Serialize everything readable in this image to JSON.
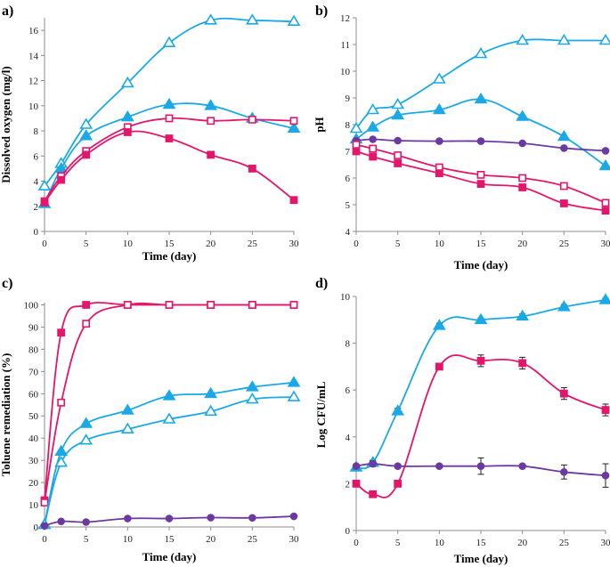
{
  "figure": {
    "colors": {
      "cyan": "#1aa9e6",
      "pink": "#e4166b",
      "purple": "#6a3aa1",
      "axis": "#8c8c8c",
      "grid": "#d9d9d9"
    }
  },
  "chart_data": [
    {
      "id": "a",
      "panel_label": "a)",
      "type": "line",
      "xlabel": "Time (day)",
      "ylabel": "Dissolved oxygen (mg/l)",
      "xticks": [
        0,
        5,
        10,
        15,
        20,
        25,
        30
      ],
      "yticks": [
        0,
        2,
        4,
        6,
        8,
        10,
        12,
        14,
        16
      ],
      "xlim": [
        0,
        30
      ],
      "ylim": [
        0,
        17
      ],
      "grid": false,
      "series": [
        {
          "name": "open-triangle",
          "color": "#1aa9e6",
          "marker": "triangle-open",
          "x": [
            0,
            2,
            5,
            10,
            15,
            20,
            25,
            30
          ],
          "y": [
            3.6,
            5.4,
            8.5,
            11.8,
            15.0,
            16.8,
            16.8,
            16.7
          ]
        },
        {
          "name": "filled-triangle",
          "color": "#1aa9e6",
          "marker": "triangle-filled",
          "x": [
            0,
            2,
            5,
            10,
            15,
            20,
            25,
            30
          ],
          "y": [
            2.2,
            5.0,
            7.6,
            9.1,
            10.1,
            10.0,
            9.0,
            8.2
          ]
        },
        {
          "name": "open-square",
          "color": "#e4166b",
          "marker": "square-open",
          "x": [
            0,
            2,
            5,
            10,
            15,
            20,
            25,
            30
          ],
          "y": [
            2.4,
            4.4,
            6.4,
            8.3,
            9.0,
            8.8,
            8.9,
            8.8
          ]
        },
        {
          "name": "filled-square",
          "color": "#e4166b",
          "marker": "square-filled",
          "x": [
            0,
            2,
            5,
            10,
            15,
            20,
            25,
            30
          ],
          "y": [
            2.3,
            4.1,
            6.1,
            7.9,
            7.4,
            6.1,
            5.0,
            2.5
          ]
        }
      ]
    },
    {
      "id": "b",
      "panel_label": "b)",
      "type": "line",
      "xlabel": "Time (day)",
      "ylabel": "pH",
      "xticks": [
        0,
        5,
        10,
        15,
        20,
        25,
        30
      ],
      "yticks": [
        4,
        5,
        6,
        7,
        8,
        9,
        10,
        11,
        12
      ],
      "xlim": [
        0,
        30
      ],
      "ylim": [
        4,
        12
      ],
      "grid": false,
      "series": [
        {
          "name": "open-triangle",
          "color": "#1aa9e6",
          "marker": "triangle-open",
          "x": [
            0,
            2,
            5,
            10,
            15,
            20,
            25,
            30
          ],
          "y": [
            7.85,
            8.55,
            8.75,
            9.7,
            10.65,
            11.15,
            11.15,
            11.15
          ]
        },
        {
          "name": "filled-triangle",
          "color": "#1aa9e6",
          "marker": "triangle-filled",
          "x": [
            0,
            2,
            5,
            10,
            15,
            20,
            25,
            30
          ],
          "y": [
            7.45,
            7.9,
            8.35,
            8.55,
            8.95,
            8.3,
            7.55,
            6.45
          ]
        },
        {
          "name": "filled-circle",
          "color": "#6a3aa1",
          "marker": "circle-filled",
          "x": [
            0,
            2,
            5,
            10,
            15,
            20,
            25,
            30
          ],
          "y": [
            7.4,
            7.45,
            7.4,
            7.38,
            7.38,
            7.3,
            7.12,
            7.02
          ]
        },
        {
          "name": "open-square",
          "color": "#e4166b",
          "marker": "square-open",
          "x": [
            0,
            2,
            5,
            10,
            15,
            20,
            25,
            30
          ],
          "y": [
            7.25,
            7.1,
            6.85,
            6.4,
            6.12,
            6.0,
            5.7,
            5.07
          ]
        },
        {
          "name": "filled-square",
          "color": "#e4166b",
          "marker": "square-filled",
          "x": [
            0,
            2,
            5,
            10,
            15,
            20,
            25,
            30
          ],
          "y": [
            7.0,
            6.8,
            6.55,
            6.18,
            5.78,
            5.65,
            5.05,
            4.78
          ]
        }
      ]
    },
    {
      "id": "c",
      "panel_label": "c)",
      "type": "line",
      "xlabel": "Time (day)",
      "ylabel": "Toluene remediation (%)",
      "xticks": [
        0,
        5,
        10,
        15,
        20,
        25,
        30
      ],
      "yticks": [
        0,
        10,
        20,
        30,
        40,
        50,
        60,
        70,
        80,
        90,
        100
      ],
      "xlim": [
        0,
        30
      ],
      "ylim": [
        0,
        101
      ],
      "grid": false,
      "series": [
        {
          "name": "filled-square",
          "color": "#e4166b",
          "marker": "square-filled",
          "x": [
            0,
            2,
            5,
            10,
            15,
            20,
            25,
            30
          ],
          "y": [
            12,
            87.5,
            100,
            100,
            100,
            100,
            100,
            100
          ]
        },
        {
          "name": "open-square",
          "color": "#e4166b",
          "marker": "square-open",
          "x": [
            0,
            2,
            5,
            10,
            15,
            20,
            25,
            30
          ],
          "y": [
            11,
            56,
            91.5,
            100,
            100,
            100,
            100,
            100
          ]
        },
        {
          "name": "filled-triangle",
          "color": "#1aa9e6",
          "marker": "triangle-filled",
          "x": [
            0,
            2,
            5,
            10,
            15,
            20,
            25,
            30
          ],
          "y": [
            1,
            34,
            46.5,
            52.5,
            59,
            60,
            63,
            65
          ]
        },
        {
          "name": "open-triangle",
          "color": "#1aa9e6",
          "marker": "triangle-open",
          "x": [
            0,
            2,
            5,
            10,
            15,
            20,
            25,
            30
          ],
          "y": [
            1,
            29,
            39,
            44,
            48.5,
            52,
            57.5,
            58.5
          ]
        },
        {
          "name": "filled-circle",
          "color": "#6a3aa1",
          "marker": "circle-filled",
          "x": [
            0,
            2,
            5,
            10,
            15,
            20,
            25,
            30
          ],
          "y": [
            0.5,
            2.5,
            2.2,
            3.8,
            3.8,
            4.2,
            4.1,
            4.8
          ]
        }
      ]
    },
    {
      "id": "d",
      "panel_label": "d)",
      "type": "line",
      "xlabel": "Time (day)",
      "ylabel": "Log CFU/mL",
      "xticks": [
        0,
        5,
        10,
        15,
        20,
        25,
        30
      ],
      "yticks": [
        0,
        2,
        4,
        6,
        8,
        10
      ],
      "xlim": [
        0,
        30
      ],
      "ylim": [
        0,
        10
      ],
      "grid": false,
      "series": [
        {
          "name": "filled-triangle",
          "color": "#1aa9e6",
          "marker": "triangle-filled",
          "x": [
            0,
            2,
            5,
            10,
            15,
            20,
            25,
            30
          ],
          "y": [
            2.7,
            2.9,
            5.1,
            8.75,
            9.0,
            9.15,
            9.55,
            9.85
          ],
          "err": [
            0.08,
            0.1,
            0.12,
            0.1,
            0.08,
            0.1,
            0.1,
            0.08
          ]
        },
        {
          "name": "filled-square",
          "color": "#e4166b",
          "marker": "square-filled",
          "x": [
            0,
            2,
            5,
            10,
            15,
            20,
            25,
            30
          ],
          "y": [
            2.0,
            1.55,
            2.0,
            7.0,
            7.25,
            7.15,
            5.85,
            5.15
          ],
          "err": [
            0,
            0,
            0,
            0,
            0.25,
            0.25,
            0.25,
            0.25
          ]
        },
        {
          "name": "filled-circle",
          "color": "#6a3aa1",
          "marker": "circle-filled",
          "x": [
            0,
            2,
            5,
            10,
            15,
            20,
            25,
            30
          ],
          "y": [
            2.75,
            2.85,
            2.75,
            2.75,
            2.75,
            2.75,
            2.5,
            2.35
          ],
          "err": [
            0.08,
            0.12,
            0.05,
            0.05,
            0.35,
            0.05,
            0.3,
            0.5
          ]
        }
      ]
    }
  ]
}
